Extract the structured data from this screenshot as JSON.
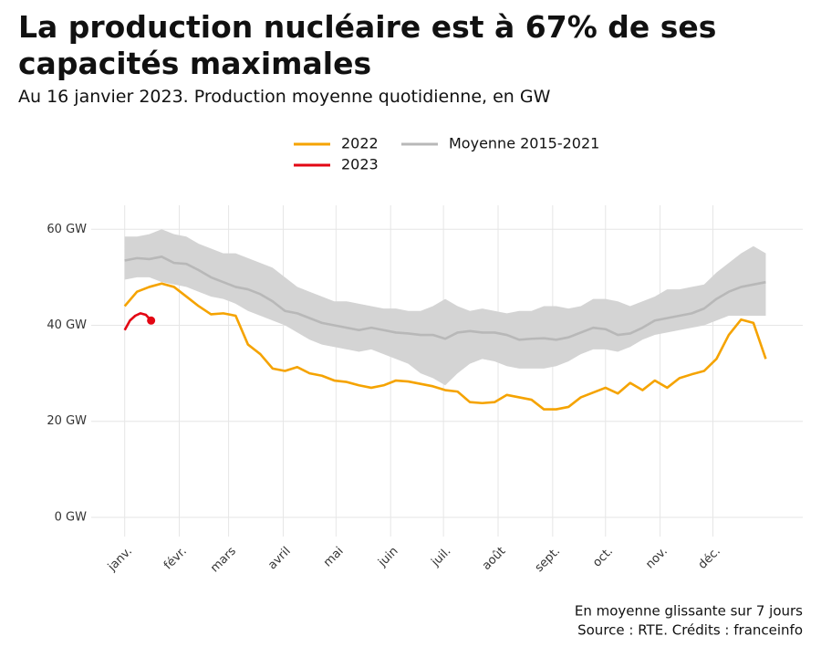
{
  "chart_data": {
    "type": "line",
    "title": "La production nucléaire est à 67% de ses capacités maximales",
    "subtitle": "Au 16 janvier 2023. Production moyenne quotidienne, en GW",
    "annotations": [
      "En moyenne glissante sur 7 jours",
      "Source : RTE. Crédits : franceinfo"
    ],
    "xlim": [
      -18,
      386
    ],
    "ylim": [
      -4,
      65
    ],
    "grid": true,
    "legend": "top",
    "xticks": [
      {
        "value": 1,
        "label": "janv."
      },
      {
        "value": 32,
        "label": "févr."
      },
      {
        "value": 60,
        "label": "mars"
      },
      {
        "value": 91,
        "label": "avril"
      },
      {
        "value": 121,
        "label": "mai"
      },
      {
        "value": 152,
        "label": "juin"
      },
      {
        "value": 182,
        "label": "juil."
      },
      {
        "value": 213,
        "label": "août"
      },
      {
        "value": 244,
        "label": "sept."
      },
      {
        "value": 274,
        "label": "oct."
      },
      {
        "value": 305,
        "label": "nov."
      },
      {
        "value": 335,
        "label": "déc."
      }
    ],
    "yticks": [
      {
        "value": 0,
        "label": "0 GW"
      },
      {
        "value": 20,
        "label": "20 GW"
      },
      {
        "value": 40,
        "label": "40 GW"
      },
      {
        "value": 60,
        "label": "60 GW"
      }
    ],
    "x": [
      1,
      8,
      15,
      22,
      29,
      36,
      43,
      50,
      57,
      64,
      71,
      78,
      85,
      92,
      99,
      106,
      113,
      120,
      127,
      134,
      141,
      148,
      155,
      162,
      169,
      176,
      183,
      190,
      197,
      204,
      211,
      218,
      225,
      232,
      239,
      246,
      253,
      260,
      267,
      274,
      281,
      288,
      295,
      302,
      309,
      316,
      323,
      330,
      337,
      344,
      351,
      358,
      365
    ],
    "band": {
      "color": "#d4d4d4",
      "upper": [
        58.5,
        58.5,
        59,
        60,
        59,
        58.5,
        57,
        56,
        55,
        55,
        54,
        53,
        52,
        50,
        48,
        47,
        46,
        45,
        45,
        44.5,
        44,
        43.5,
        43.5,
        43,
        43,
        44,
        45.5,
        44,
        43,
        43.5,
        43,
        42.5,
        43,
        43,
        44,
        44,
        43.5,
        44,
        45.5,
        45.5,
        45,
        44,
        45,
        46,
        47.5,
        47.5,
        48,
        48.5,
        51,
        53,
        55,
        56.5,
        55
      ],
      "lower": [
        49.5,
        50,
        50,
        49,
        48.5,
        48,
        47,
        46,
        45.5,
        44.5,
        43,
        42,
        41,
        40,
        38.5,
        37,
        36,
        35.5,
        35,
        34.5,
        35,
        34,
        33,
        32,
        30,
        29,
        27.5,
        30,
        32,
        33,
        32.5,
        31.5,
        31,
        31,
        31,
        31.5,
        32.5,
        34,
        35,
        35,
        34.5,
        35.5,
        37,
        38,
        38.5,
        39,
        39.5,
        40,
        41,
        42,
        42,
        42,
        42
      ]
    },
    "series": [
      {
        "name": "2022",
        "color": "#f5a300",
        "values": [
          44,
          47,
          48,
          48.7,
          48,
          46,
          44,
          42.3,
          42.5,
          42,
          36,
          34,
          31,
          30.5,
          31.3,
          30,
          29.5,
          28.5,
          28.2,
          27.5,
          27,
          27.5,
          28.5,
          28.3,
          27.8,
          27.3,
          26.5,
          26.2,
          24,
          23.8,
          24,
          25.5,
          25,
          24.5,
          22.5,
          22.5,
          23,
          25,
          26,
          27,
          25.8,
          28,
          26.5,
          28.5,
          27,
          29,
          29.8,
          30.5,
          33,
          38,
          41.2,
          40.5,
          33
        ]
      },
      {
        "name": "2023",
        "color": "#e30613",
        "x": [
          1,
          4,
          7,
          10,
          13,
          16
        ],
        "values": [
          39,
          41,
          42,
          42.5,
          42.2,
          41
        ]
      },
      {
        "name": "Moyenne 2015-2021",
        "color": "#b8b8b8",
        "values": [
          53.5,
          54,
          53.8,
          54.3,
          53,
          52.8,
          51.5,
          50,
          49,
          48,
          47.5,
          46.5,
          45,
          43,
          42.5,
          41.5,
          40.5,
          40,
          39.5,
          39,
          39.5,
          39,
          38.5,
          38.3,
          38,
          38,
          37.2,
          38.5,
          38.8,
          38.5,
          38.5,
          38,
          37,
          37.2,
          37.3,
          37,
          37.5,
          38.5,
          39.5,
          39.2,
          38,
          38.3,
          39.5,
          41,
          41.5,
          42,
          42.5,
          43.5,
          45.5,
          47,
          48,
          48.5,
          49
        ]
      }
    ]
  }
}
